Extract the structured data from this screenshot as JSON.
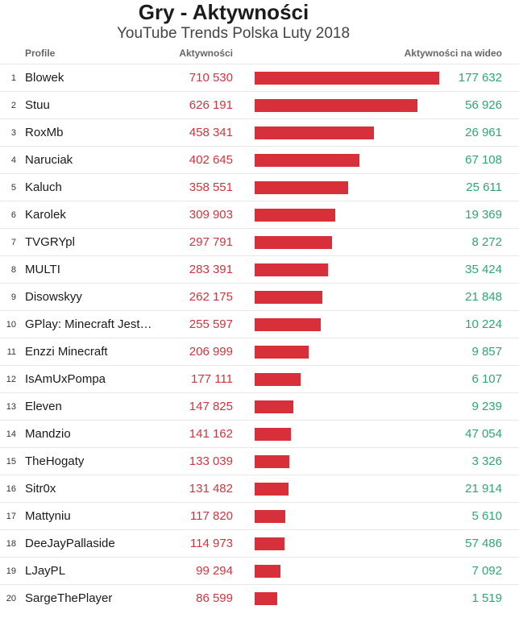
{
  "header": {
    "title": "Gry - Aktywności",
    "subtitle": "YouTube Trends Polska Luty 2018"
  },
  "columns": {
    "profile": "Profile",
    "activities": "Aktywności",
    "per_video": "Aktywności na wideo"
  },
  "colors": {
    "bar": "#d8303a",
    "activities_text": "#d1343e",
    "per_video_text": "#2fa672"
  },
  "chart_data": {
    "type": "bar",
    "title": "Gry - Aktywności",
    "subtitle": "YouTube Trends Polska Luty 2018",
    "xlabel": "Aktywności",
    "ylabel": "Profile",
    "orientation": "horizontal",
    "xlim": [
      0,
      710530
    ],
    "rows": [
      {
        "rank": "1",
        "name": "Blowek",
        "value": 710530,
        "value_label": "710 530",
        "per_video": "177 632"
      },
      {
        "rank": "2",
        "name": "Stuu",
        "value": 626191,
        "value_label": "626 191",
        "per_video": "56 926"
      },
      {
        "rank": "3",
        "name": "RoxMb",
        "value": 458341,
        "value_label": "458 341",
        "per_video": "26 961"
      },
      {
        "rank": "4",
        "name": "Naruciak",
        "value": 402645,
        "value_label": "402 645",
        "per_video": "67 108"
      },
      {
        "rank": "5",
        "name": "Kaluch",
        "value": 358551,
        "value_label": "358 551",
        "per_video": "25 611"
      },
      {
        "rank": "6",
        "name": "Karolek",
        "value": 309903,
        "value_label": "309 903",
        "per_video": "19 369"
      },
      {
        "rank": "7",
        "name": "TVGRYpl",
        "value": 297791,
        "value_label": "297 791",
        "per_video": "8 272"
      },
      {
        "rank": "8",
        "name": "MULTI",
        "value": 283391,
        "value_label": "283 391",
        "per_video": "35 424"
      },
      {
        "rank": "9",
        "name": "Disowskyy",
        "value": 262175,
        "value_label": "262 175",
        "per_video": "21 848"
      },
      {
        "rank": "10",
        "name": "GPlay: Minecraft Jest…",
        "value": 255597,
        "value_label": "255 597",
        "per_video": "10 224"
      },
      {
        "rank": "11",
        "name": "Enzzi Minecraft",
        "value": 206999,
        "value_label": "206 999",
        "per_video": "9 857"
      },
      {
        "rank": "12",
        "name": "IsAmUxPompa",
        "value": 177111,
        "value_label": "177 111",
        "per_video": "6 107"
      },
      {
        "rank": "13",
        "name": "Eleven",
        "value": 147825,
        "value_label": "147 825",
        "per_video": "9 239"
      },
      {
        "rank": "14",
        "name": "Mandzio",
        "value": 141162,
        "value_label": "141 162",
        "per_video": "47 054"
      },
      {
        "rank": "15",
        "name": "TheHogaty",
        "value": 133039,
        "value_label": "133 039",
        "per_video": "3 326"
      },
      {
        "rank": "16",
        "name": "Sitr0x",
        "value": 131482,
        "value_label": "131 482",
        "per_video": "21 914"
      },
      {
        "rank": "17",
        "name": "Mattyniu",
        "value": 117820,
        "value_label": "117 820",
        "per_video": "5 610"
      },
      {
        "rank": "18",
        "name": "DeeJayPallaside",
        "value": 114973,
        "value_label": "114 973",
        "per_video": "57 486"
      },
      {
        "rank": "19",
        "name": "LJayPL",
        "value": 99294,
        "value_label": "99 294",
        "per_video": "7 092"
      },
      {
        "rank": "20",
        "name": "SargeThePlayer",
        "value": 86599,
        "value_label": "86 599",
        "per_video": "1 519"
      }
    ]
  }
}
